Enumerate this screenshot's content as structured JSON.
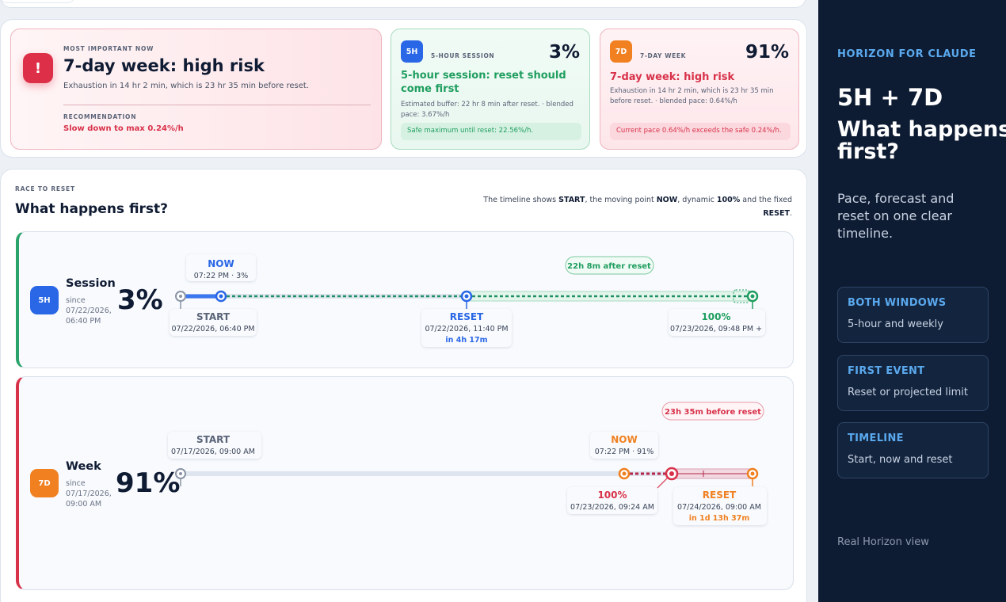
{
  "summary": {
    "primary": {
      "eyebrow": "MOST IMPORTANT NOW",
      "icon": "!",
      "title": "7-day week: high risk",
      "description": "Exhaustion in 14 hr 2 min, which is 23 hr 35 min before reset.",
      "rec_label": "RECOMMENDATION",
      "rec_text": "Slow down to max 0.24%/h"
    },
    "session": {
      "badge": "5H",
      "label": "5-HOUR SESSION",
      "pct": "3%",
      "headline": "5-hour session: reset should come first",
      "sub": "Estimated buffer: 22 hr 8 min after reset. · blended pace: 3.67%/h",
      "chip": "Safe maximum until reset: 22.56%/h."
    },
    "week": {
      "badge": "7D",
      "label": "7-DAY WEEK",
      "pct": "91%",
      "headline": "7-day week: high risk",
      "sub": "Exhaustion in 14 hr 2 min, which is 23 hr 35 min before reset. · blended pace: 0.64%/h",
      "chip": "Current pace 0.64%/h exceeds the safe 0.24%/h."
    }
  },
  "race": {
    "eyebrow": "RACE TO RESET",
    "title": "What happens first?",
    "note_parts": [
      "The timeline shows ",
      "START",
      ", the moving point ",
      "NOW",
      ", dynamic ",
      "100%",
      " and the fixed ",
      "RESET",
      "."
    ],
    "session": {
      "badge": "5H",
      "name": "Session",
      "since_label": "since",
      "since_value": "07/22/2026, 06:40 PM",
      "pct": "3%",
      "start_label": "START",
      "start_time": "07/22/2026, 06:40 PM",
      "now_label": "NOW",
      "now_time": "07:22 PM · 3%",
      "reset_label": "RESET",
      "reset_time": "07/22/2026, 11:40 PM",
      "reset_in": "in 4h 17m",
      "full_label": "100%",
      "full_time": "07/23/2026, 09:48 PM +",
      "gap_pill": "22h 8m after reset"
    },
    "week": {
      "badge": "7D",
      "name": "Week",
      "since_label": "since",
      "since_value": "07/17/2026, 09:00 AM",
      "pct": "91%",
      "start_label": "START",
      "start_time": "07/17/2026, 09:00 AM",
      "now_label": "NOW",
      "now_time": "07:22 PM · 91%",
      "full_label": "100%",
      "full_time": "07/23/2026, 09:24 AM",
      "reset_label": "RESET",
      "reset_time": "07/24/2026, 09:00 AM",
      "reset_in": "in 1d 13h 37m",
      "gap_pill": "23h 35m before reset"
    }
  },
  "sidebar": {
    "brand": "HORIZON FOR CLAUDE",
    "headline_1": "5H + 7D",
    "headline_2": "What happens first?",
    "lead": "Pace, forecast and reset on one clear timeline.",
    "features": [
      {
        "title": "BOTH WINDOWS",
        "text": "5-hour and weekly"
      },
      {
        "title": "FIRST EVENT",
        "text": "Reset or projected limit"
      },
      {
        "title": "TIMELINE",
        "text": "Start, now and reset"
      }
    ],
    "footer": "Real Horizon view"
  },
  "colors": {
    "blue": "#2a67e6",
    "green": "#1f9e5f",
    "red": "#d8324a",
    "orange": "#f08020",
    "sidebar_bg": "#0e1c33",
    "sidebar_accent": "#5aa9ee"
  }
}
